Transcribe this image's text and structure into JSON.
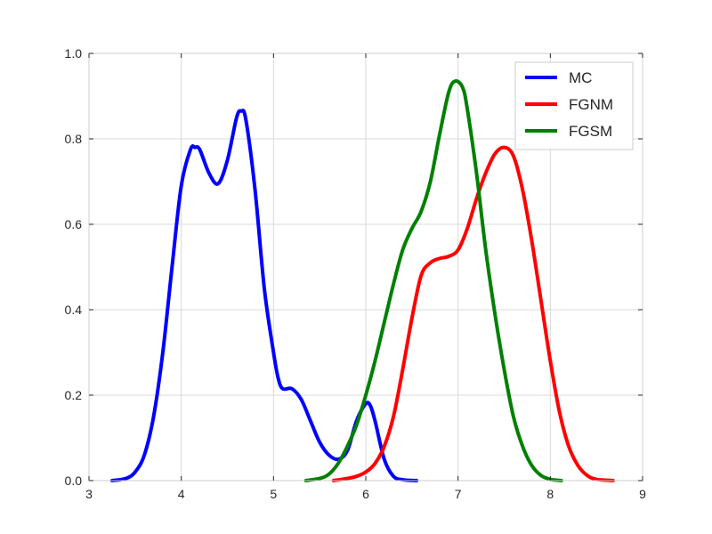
{
  "chart_data": {
    "type": "line",
    "title": "",
    "xlabel": "",
    "ylabel": "",
    "xlim": [
      3,
      9
    ],
    "ylim": [
      0.0,
      1.0
    ],
    "xticks": [
      3,
      4,
      5,
      6,
      7,
      8,
      9
    ],
    "xtick_labels": [
      "3",
      "4",
      "5",
      "6",
      "7",
      "8",
      "9"
    ],
    "yticks": [
      0.0,
      0.2,
      0.4,
      0.6,
      0.8,
      1.0
    ],
    "ytick_labels": [
      "0.0",
      "0.2",
      "0.4",
      "0.6",
      "0.8",
      "1.0"
    ],
    "grid": true,
    "legend_position": "top-right",
    "series": [
      {
        "name": "MC",
        "color": "#0000ff",
        "x": [
          3.25,
          3.4,
          3.5,
          3.6,
          3.7,
          3.8,
          3.9,
          4.0,
          4.1,
          4.15,
          4.2,
          4.3,
          4.4,
          4.5,
          4.6,
          4.65,
          4.7,
          4.8,
          4.9,
          5.0,
          5.05,
          5.1,
          5.2,
          5.3,
          5.4,
          5.5,
          5.6,
          5.7,
          5.8,
          5.9,
          6.0,
          6.05,
          6.1,
          6.2,
          6.3,
          6.4,
          6.55
        ],
        "y": [
          0.0,
          0.005,
          0.02,
          0.06,
          0.15,
          0.3,
          0.5,
          0.69,
          0.775,
          0.78,
          0.775,
          0.72,
          0.695,
          0.75,
          0.85,
          0.865,
          0.845,
          0.68,
          0.45,
          0.3,
          0.24,
          0.215,
          0.215,
          0.19,
          0.14,
          0.09,
          0.06,
          0.05,
          0.07,
          0.14,
          0.18,
          0.175,
          0.14,
          0.05,
          0.01,
          0.002,
          0.0
        ]
      },
      {
        "name": "FGNM",
        "color": "#ff0000",
        "x": [
          5.65,
          5.8,
          5.9,
          6.0,
          6.1,
          6.2,
          6.3,
          6.4,
          6.5,
          6.6,
          6.7,
          6.8,
          6.9,
          7.0,
          7.1,
          7.2,
          7.3,
          7.4,
          7.5,
          7.6,
          7.7,
          7.8,
          7.9,
          8.0,
          8.1,
          8.2,
          8.3,
          8.4,
          8.5,
          8.68
        ],
        "y": [
          0.0,
          0.005,
          0.01,
          0.02,
          0.04,
          0.08,
          0.15,
          0.26,
          0.38,
          0.48,
          0.51,
          0.52,
          0.525,
          0.54,
          0.59,
          0.66,
          0.72,
          0.765,
          0.78,
          0.76,
          0.68,
          0.56,
          0.42,
          0.28,
          0.16,
          0.08,
          0.035,
          0.012,
          0.003,
          0.0
        ]
      },
      {
        "name": "FGSM",
        "color": "#008000",
        "x": [
          5.35,
          5.5,
          5.6,
          5.7,
          5.8,
          5.9,
          6.0,
          6.1,
          6.2,
          6.3,
          6.4,
          6.5,
          6.6,
          6.7,
          6.8,
          6.9,
          6.97,
          7.05,
          7.1,
          7.2,
          7.3,
          7.4,
          7.5,
          7.6,
          7.7,
          7.8,
          7.9,
          8.0,
          8.12
        ],
        "y": [
          0.0,
          0.005,
          0.015,
          0.04,
          0.08,
          0.13,
          0.2,
          0.28,
          0.37,
          0.46,
          0.54,
          0.59,
          0.63,
          0.7,
          0.81,
          0.91,
          0.935,
          0.92,
          0.87,
          0.72,
          0.54,
          0.39,
          0.26,
          0.15,
          0.08,
          0.035,
          0.012,
          0.003,
          0.0
        ]
      }
    ]
  }
}
